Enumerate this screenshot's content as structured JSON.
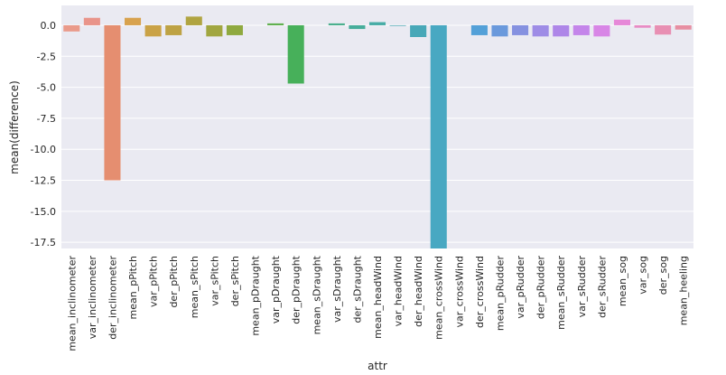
{
  "chart_data": {
    "type": "bar",
    "title": "",
    "xlabel": "attr",
    "ylabel": "mean(difference)",
    "ylim": [
      -18.0,
      1.6
    ],
    "yticks": [
      0.0,
      -2.5,
      -5.0,
      -7.5,
      -10.0,
      -12.5,
      -15.0,
      -17.5
    ],
    "ytick_labels": [
      "0.0",
      "-2.5",
      "-5.0",
      "-7.5",
      "-10.0",
      "-12.5",
      "-15.0",
      "-17.5"
    ],
    "grid": true,
    "categories": [
      "mean_inclinometer",
      "var_inclinometer",
      "der_inclinometer",
      "mean_pPitch",
      "var_pPitch",
      "der_pPitch",
      "mean_sPitch",
      "var_sPitch",
      "der_sPitch",
      "mean_pDraught",
      "var_pDraught",
      "der_pDraught",
      "mean_sDraught",
      "var_sDraught",
      "der_sDraught",
      "mean_headWind",
      "var_headWind",
      "der_headWind",
      "mean_crossWind",
      "var_crossWind",
      "der_crossWind",
      "mean_pRudder",
      "var_pRudder",
      "der_pRudder",
      "mean_sRudder",
      "var_sRudder",
      "der_sRudder",
      "mean_sog",
      "var_sog",
      "der_sog",
      "mean_heeling"
    ],
    "values": [
      -0.5,
      0.6,
      -12.5,
      0.6,
      -0.9,
      -0.8,
      0.7,
      -0.9,
      -0.8,
      0.0,
      0.15,
      -4.7,
      0.0,
      0.15,
      -0.3,
      0.25,
      -0.05,
      -0.95,
      -18.0,
      0.0,
      -0.8,
      -0.9,
      -0.8,
      -0.9,
      -0.9,
      -0.8,
      -0.9,
      0.45,
      -0.2,
      -0.75,
      -0.35
    ],
    "colors": [
      "#ea9a8a",
      "#e9948a",
      "#e58e70",
      "#d8a24e",
      "#caa246",
      "#bea244",
      "#b0a441",
      "#a1a640",
      "#8fa93f",
      "#74ac48",
      "#5daf4c",
      "#47b05a",
      "#48b07a",
      "#47ae8c",
      "#46ad9b",
      "#47aca6",
      "#48aab2",
      "#48a8b8",
      "#48a8c2",
      "#4aa4cf",
      "#53a0d8",
      "#6a99dc",
      "#8591e0",
      "#9e8ce6",
      "#ae86e8",
      "#c485ea",
      "#d886e6",
      "#e688d8",
      "#e88bc4",
      "#e88fb3",
      "#e78ea2"
    ]
  }
}
